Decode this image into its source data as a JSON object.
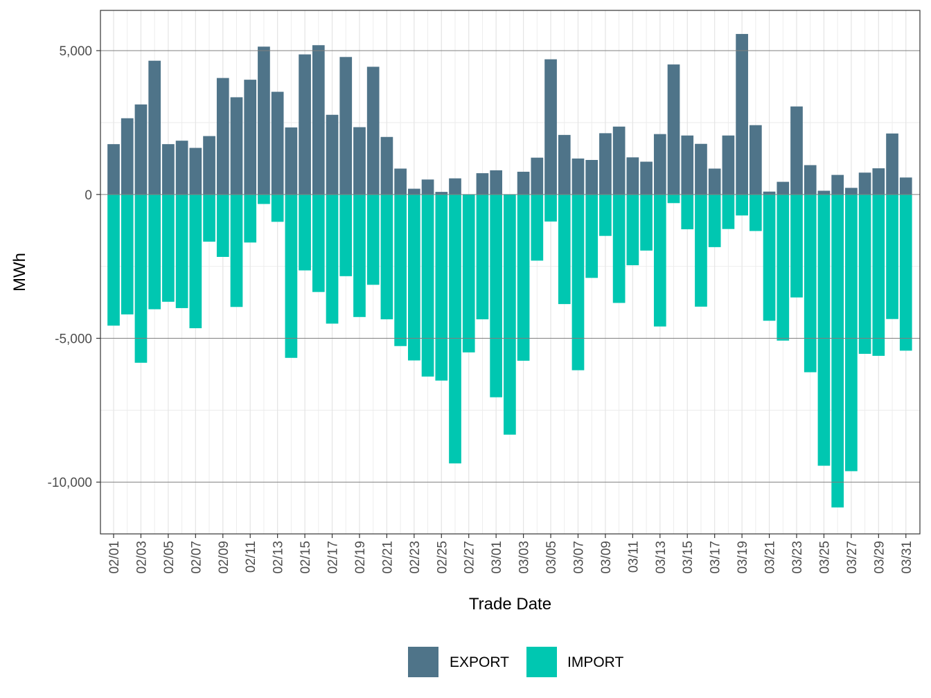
{
  "chart_data": {
    "type": "bar",
    "stacked": true,
    "title": "",
    "xlabel": "Trade Date",
    "ylabel": "MWh",
    "ylim": [
      -11800,
      6400
    ],
    "y_ticks": [
      5000,
      0,
      -5000,
      -10000
    ],
    "y_tick_labels": [
      "5,000",
      "0",
      "-5,000",
      "-10,000"
    ],
    "grid": true,
    "legend_position": "bottom",
    "colors": {
      "EXPORT": "#4F7489",
      "IMPORT": "#00C7B1"
    },
    "categories": [
      "02/01",
      "02/02",
      "02/03",
      "02/04",
      "02/05",
      "02/06",
      "02/07",
      "02/08",
      "02/09",
      "02/10",
      "02/11",
      "02/12",
      "02/13",
      "02/14",
      "02/15",
      "02/16",
      "02/17",
      "02/18",
      "02/19",
      "02/20",
      "02/21",
      "02/22",
      "02/23",
      "02/24",
      "02/25",
      "02/26",
      "02/27",
      "02/28",
      "03/01",
      "03/02",
      "03/03",
      "03/04",
      "03/05",
      "03/06",
      "03/07",
      "03/08",
      "03/09",
      "03/10",
      "03/11",
      "03/12",
      "03/13",
      "03/14",
      "03/15",
      "03/16",
      "03/17",
      "03/18",
      "03/19",
      "03/20",
      "03/21",
      "03/22",
      "03/23",
      "03/24",
      "03/25",
      "03/26",
      "03/27",
      "03/28",
      "03/29",
      "03/30",
      "03/31"
    ],
    "x_tick_labels": [
      "02/01",
      "02/03",
      "02/05",
      "02/07",
      "02/09",
      "02/11",
      "02/13",
      "02/15",
      "02/17",
      "02/19",
      "02/21",
      "02/23",
      "02/25",
      "02/27",
      "03/01",
      "03/03",
      "03/05",
      "03/07",
      "03/09",
      "03/11",
      "03/13",
      "03/15",
      "03/17",
      "03/19",
      "03/21",
      "03/23",
      "03/25",
      "03/27",
      "03/29",
      "03/31"
    ],
    "series": [
      {
        "name": "EXPORT",
        "values": [
          1750,
          2650,
          3130,
          4650,
          1750,
          1870,
          1620,
          2030,
          4050,
          3380,
          3990,
          5140,
          3570,
          2330,
          4870,
          5190,
          2770,
          4780,
          2340,
          4440,
          2000,
          900,
          200,
          520,
          90,
          560,
          0,
          740,
          840,
          0,
          790,
          1280,
          4700,
          2070,
          1250,
          1200,
          2130,
          2360,
          1290,
          1140,
          2100,
          4520,
          2050,
          1760,
          900,
          2050,
          5580,
          2410,
          100,
          440,
          3060,
          1020,
          130,
          680,
          230,
          760,
          910,
          2120,
          590
        ]
      },
      {
        "name": "IMPORT",
        "values": [
          -4560,
          -4170,
          -5850,
          -3990,
          -3730,
          -3950,
          -4650,
          -1640,
          -2170,
          -3910,
          -1670,
          -330,
          -950,
          -5680,
          -2640,
          -3390,
          -4490,
          -2840,
          -4260,
          -3140,
          -4340,
          -5270,
          -5770,
          -6330,
          -6470,
          -9350,
          -5490,
          -4340,
          -7050,
          -8350,
          -5780,
          -2300,
          -940,
          -3810,
          -6110,
          -2900,
          -1440,
          -3770,
          -2460,
          -1950,
          -4590,
          -300,
          -1210,
          -3900,
          -1830,
          -1200,
          -730,
          -1270,
          -4390,
          -5080,
          -3580,
          -6180,
          -9430,
          -10880,
          -9620,
          -5540,
          -5610,
          -4330,
          -5430
        ]
      }
    ]
  }
}
